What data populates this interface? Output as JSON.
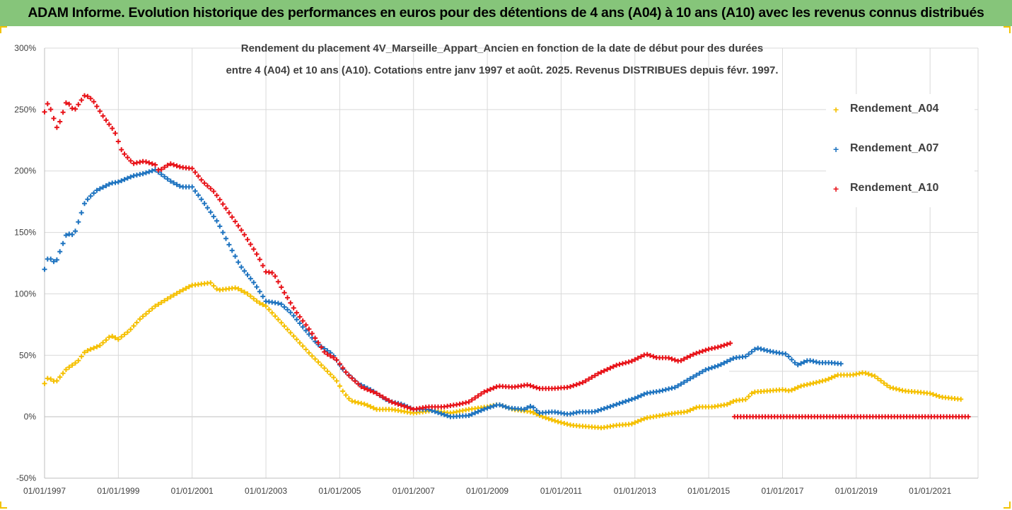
{
  "header": {
    "title": "ADAM Informe. Evolution historique des performances en euros pour des détentions de 4 ans (A04) à 10 ans (A10) avec les revenus connus distribués"
  },
  "chart_data": {
    "type": "scatter",
    "title_line1": "Rendement du placement 4V_Marseille_Appart_Ancien en fonction de la date de début pour des durées",
    "title_line2": "entre 4 (A04) et 10 ans (A10). Cotations entre janv 1997 et août. 2025. Revenus DISTRIBUES depuis févr. 1997.",
    "y_unit": "%",
    "ylim": [
      -50,
      300
    ],
    "y_ticks": [
      "-50%",
      "0%",
      "50%",
      "100%",
      "150%",
      "200%",
      "250%",
      "300%"
    ],
    "x_ticks": [
      "01/01/1997",
      "01/01/1999",
      "01/01/2001",
      "01/01/2003",
      "01/01/2005",
      "01/01/2007",
      "01/01/2009",
      "01/01/2011",
      "01/01/2013",
      "01/01/2015",
      "01/01/2017",
      "01/01/2019",
      "01/01/2021"
    ],
    "x_tick_years": [
      1997,
      1999,
      2001,
      2003,
      2005,
      2007,
      2009,
      2011,
      2013,
      2015,
      2017,
      2019,
      2021
    ],
    "xlim_years": [
      1997.0,
      2022.05
    ],
    "grid": true,
    "legend_position": "right",
    "series": [
      {
        "name": "Rendement_A04",
        "color": "#f5c000",
        "x_start_year": 1997.0,
        "x_end_year": 2021.9,
        "anchors": [
          [
            1997.0,
            27
          ],
          [
            1997.1,
            32
          ],
          [
            1997.3,
            28
          ],
          [
            1997.6,
            39
          ],
          [
            1997.9,
            45
          ],
          [
            1998.1,
            53
          ],
          [
            1998.5,
            58
          ],
          [
            1998.8,
            66
          ],
          [
            1999.0,
            63
          ],
          [
            1999.3,
            70
          ],
          [
            1999.6,
            80
          ],
          [
            2000.0,
            90
          ],
          [
            2000.5,
            99
          ],
          [
            2000.8,
            104
          ],
          [
            2001.0,
            107
          ],
          [
            2001.5,
            109
          ],
          [
            2001.7,
            103
          ],
          [
            2002.2,
            105
          ],
          [
            2002.5,
            100
          ],
          [
            2002.8,
            93
          ],
          [
            2003.0,
            90
          ],
          [
            2003.4,
            77
          ],
          [
            2003.8,
            64
          ],
          [
            2004.2,
            51
          ],
          [
            2004.6,
            39
          ],
          [
            2004.9,
            30
          ],
          [
            2005.1,
            20
          ],
          [
            2005.3,
            13
          ],
          [
            2005.7,
            10
          ],
          [
            2006.0,
            6
          ],
          [
            2006.4,
            6
          ],
          [
            2006.8,
            4
          ],
          [
            2007.0,
            3
          ],
          [
            2007.5,
            5
          ],
          [
            2008.0,
            3
          ],
          [
            2008.5,
            6
          ],
          [
            2009.0,
            8
          ],
          [
            2009.3,
            10
          ],
          [
            2009.7,
            6
          ],
          [
            2010.2,
            4
          ],
          [
            2010.5,
            0
          ],
          [
            2010.9,
            -4
          ],
          [
            2011.3,
            -7
          ],
          [
            2011.7,
            -8
          ],
          [
            2012.1,
            -9
          ],
          [
            2012.5,
            -7
          ],
          [
            2012.9,
            -6
          ],
          [
            2013.3,
            -1
          ],
          [
            2013.7,
            1
          ],
          [
            2014.1,
            3
          ],
          [
            2014.4,
            4
          ],
          [
            2014.7,
            8
          ],
          [
            2015.1,
            8
          ],
          [
            2015.5,
            10
          ],
          [
            2015.7,
            13
          ],
          [
            2016.0,
            14
          ],
          [
            2016.2,
            20
          ],
          [
            2016.6,
            21
          ],
          [
            2017.0,
            22
          ],
          [
            2017.2,
            21
          ],
          [
            2017.5,
            25
          ],
          [
            2017.8,
            27
          ],
          [
            2018.2,
            30
          ],
          [
            2018.5,
            34
          ],
          [
            2018.9,
            34
          ],
          [
            2019.2,
            36
          ],
          [
            2019.5,
            33
          ],
          [
            2019.9,
            24
          ],
          [
            2020.3,
            21
          ],
          [
            2020.7,
            20
          ],
          [
            2021.0,
            19
          ],
          [
            2021.3,
            16
          ],
          [
            2021.9,
            14
          ]
        ]
      },
      {
        "name": "Rendement_A07",
        "color": "#1f74c0",
        "x_start_year": 1997.0,
        "x_end_year": 2018.6,
        "anchors": [
          [
            1997.0,
            120
          ],
          [
            1997.1,
            130
          ],
          [
            1997.3,
            125
          ],
          [
            1997.6,
            149
          ],
          [
            1997.8,
            148
          ],
          [
            1998.1,
            175
          ],
          [
            1998.4,
            184
          ],
          [
            1998.8,
            190
          ],
          [
            1999.0,
            191
          ],
          [
            1999.4,
            196
          ],
          [
            1999.7,
            198
          ],
          [
            2000.0,
            201
          ],
          [
            2000.4,
            192
          ],
          [
            2000.7,
            187
          ],
          [
            2001.0,
            187
          ],
          [
            2001.3,
            175
          ],
          [
            2001.7,
            158
          ],
          [
            2002.0,
            140
          ],
          [
            2002.3,
            123
          ],
          [
            2002.7,
            108
          ],
          [
            2003.0,
            94
          ],
          [
            2003.4,
            92
          ],
          [
            2003.7,
            84
          ],
          [
            2004.0,
            73
          ],
          [
            2004.4,
            59
          ],
          [
            2004.8,
            51
          ],
          [
            2005.1,
            38
          ],
          [
            2005.5,
            27
          ],
          [
            2005.9,
            21
          ],
          [
            2006.3,
            13
          ],
          [
            2006.7,
            10
          ],
          [
            2007.0,
            6
          ],
          [
            2007.4,
            6
          ],
          [
            2007.8,
            2
          ],
          [
            2008.0,
            0
          ],
          [
            2008.5,
            1
          ],
          [
            2008.9,
            6
          ],
          [
            2009.3,
            10
          ],
          [
            2009.6,
            7
          ],
          [
            2010.0,
            6
          ],
          [
            2010.2,
            9
          ],
          [
            2010.4,
            3
          ],
          [
            2010.8,
            4
          ],
          [
            2011.2,
            2
          ],
          [
            2011.5,
            4
          ],
          [
            2011.9,
            4
          ],
          [
            2012.3,
            8
          ],
          [
            2012.7,
            12
          ],
          [
            2013.0,
            15
          ],
          [
            2013.3,
            19
          ],
          [
            2013.7,
            21
          ],
          [
            2014.1,
            24
          ],
          [
            2014.5,
            31
          ],
          [
            2014.9,
            38
          ],
          [
            2015.3,
            42
          ],
          [
            2015.7,
            48
          ],
          [
            2016.0,
            49
          ],
          [
            2016.3,
            56
          ],
          [
            2016.7,
            53
          ],
          [
            2017.1,
            51
          ],
          [
            2017.4,
            42
          ],
          [
            2017.7,
            46
          ],
          [
            2018.0,
            44
          ],
          [
            2018.3,
            44
          ],
          [
            2018.6,
            43
          ]
        ]
      },
      {
        "name": "Rendement_A10",
        "color": "#e8141a",
        "x_start_year": 1997.0,
        "x_end_year": 2015.6,
        "anchors": [
          [
            1997.0,
            248
          ],
          [
            1997.1,
            256
          ],
          [
            1997.35,
            234
          ],
          [
            1997.6,
            257
          ],
          [
            1997.8,
            249
          ],
          [
            1998.1,
            262
          ],
          [
            1998.3,
            258
          ],
          [
            1998.6,
            244
          ],
          [
            1998.9,
            232
          ],
          [
            1999.1,
            216
          ],
          [
            1999.4,
            206
          ],
          [
            1999.7,
            208
          ],
          [
            2000.0,
            205
          ],
          [
            2000.1,
            200
          ],
          [
            2000.4,
            206
          ],
          [
            2000.7,
            203
          ],
          [
            2001.0,
            202
          ],
          [
            2001.3,
            191
          ],
          [
            2001.6,
            183
          ],
          [
            2002.0,
            166
          ],
          [
            2002.4,
            149
          ],
          [
            2002.8,
            130
          ],
          [
            2003.0,
            118
          ],
          [
            2003.2,
            117
          ],
          [
            2003.5,
            101
          ],
          [
            2003.8,
            86
          ],
          [
            2004.2,
            70
          ],
          [
            2004.6,
            52
          ],
          [
            2004.9,
            47
          ],
          [
            2005.2,
            35
          ],
          [
            2005.6,
            24
          ],
          [
            2006.0,
            19
          ],
          [
            2006.4,
            12
          ],
          [
            2006.8,
            8
          ],
          [
            2007.0,
            6
          ],
          [
            2007.4,
            8
          ],
          [
            2007.8,
            8
          ],
          [
            2008.2,
            10
          ],
          [
            2008.5,
            12
          ],
          [
            2008.9,
            20
          ],
          [
            2009.3,
            25
          ],
          [
            2009.7,
            24
          ],
          [
            2010.1,
            26
          ],
          [
            2010.4,
            23
          ],
          [
            2010.8,
            23
          ],
          [
            2011.2,
            24
          ],
          [
            2011.6,
            28
          ],
          [
            2012.0,
            35
          ],
          [
            2012.5,
            42
          ],
          [
            2012.9,
            45
          ],
          [
            2013.3,
            51
          ],
          [
            2013.6,
            48
          ],
          [
            2013.9,
            48
          ],
          [
            2014.2,
            45
          ],
          [
            2014.6,
            51
          ],
          [
            2015.0,
            55
          ],
          [
            2015.3,
            57
          ],
          [
            2015.6,
            60
          ]
        ]
      },
      {
        "name": "Rendement_A10",
        "color": "#e8141a",
        "x_start_year": 2015.7,
        "x_end_year": 2022.05,
        "anchors": [
          [
            2015.7,
            0
          ],
          [
            2022.05,
            0
          ]
        ]
      }
    ],
    "legend": [
      {
        "label": "Rendement_A04",
        "color": "#f5c000"
      },
      {
        "label": "Rendement_A07",
        "color": "#1f74c0"
      },
      {
        "label": "Rendement_A10",
        "color": "#e8141a"
      }
    ]
  }
}
